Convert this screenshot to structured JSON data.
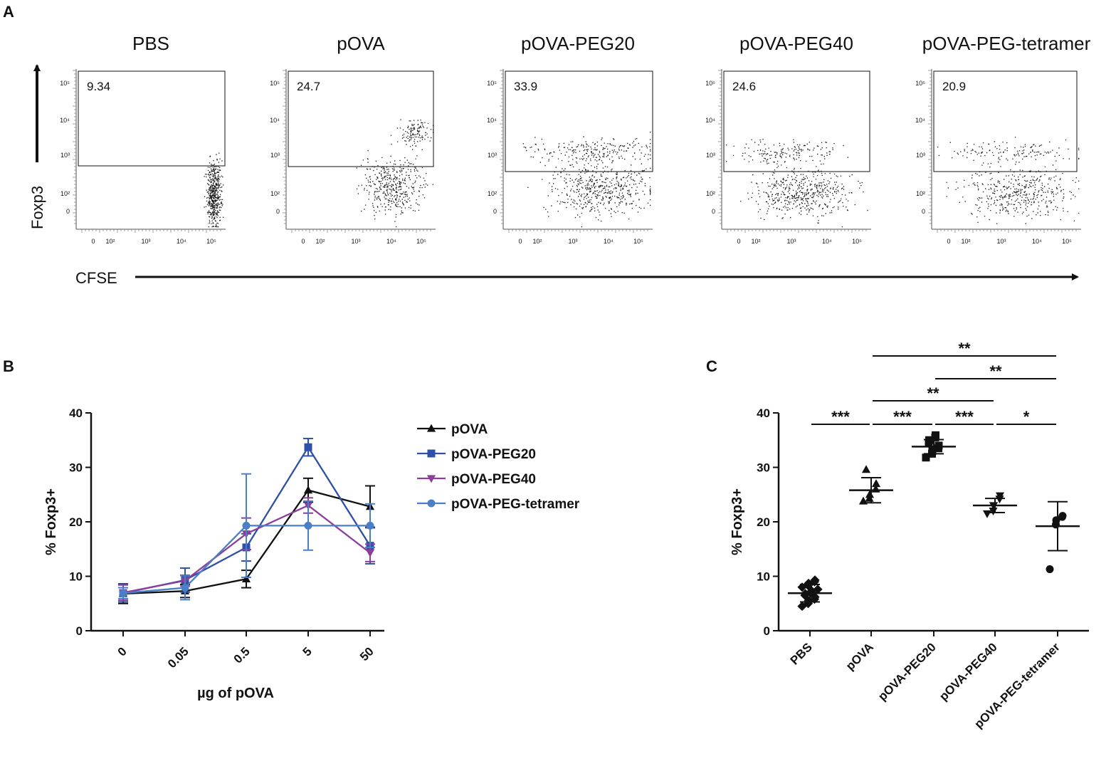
{
  "colors": {
    "black": "#111111",
    "pOVA": "#111111",
    "pOVA-PEG20": "#2e50a8",
    "pOVA-PEG40": "#8b3f9b",
    "pOVA-PEG-tetramer": "#4a7fc8"
  },
  "panel_a": {
    "letter": "A",
    "y_axis_label": "Foxp3",
    "x_axis_label": "CFSE",
    "y_tick_labels": [
      "10⁵",
      "10⁴",
      "10³",
      "10²",
      "0"
    ],
    "x_tick_labels": [
      "0",
      "10²",
      "10³",
      "10⁴",
      "10⁵"
    ],
    "plots": [
      {
        "title": "PBS",
        "gate_value": "9.34"
      },
      {
        "title": "pOVA",
        "gate_value": "24.7"
      },
      {
        "title": "pOVA-PEG20",
        "gate_value": "33.9"
      },
      {
        "title": "pOVA-PEG40",
        "gate_value": "24.6"
      },
      {
        "title": "pOVA-PEG-tetramer",
        "gate_value": "20.9"
      }
    ]
  },
  "chart_data": [
    {
      "panel": "B",
      "type": "line",
      "title": "",
      "xlabel": "µg of pOVA",
      "ylabel": "% Foxp3+",
      "categories": [
        "0",
        "0.05",
        "0.5",
        "5",
        "50"
      ],
      "ylim": [
        0,
        40
      ],
      "yticks": [
        0,
        10,
        20,
        30,
        40
      ],
      "legend_position": "right",
      "series": [
        {
          "name": "pOVA",
          "marker": "triangle-up",
          "values": [
            6.8,
            7.3,
            9.5,
            25.8,
            22.8
          ],
          "errors": [
            1.8,
            1.2,
            1.6,
            2.2,
            3.8
          ]
        },
        {
          "name": "pOVA-PEG20",
          "marker": "square",
          "values": [
            6.9,
            9.3,
            15.3,
            33.7,
            15.6
          ],
          "errors": [
            1.6,
            2.2,
            2.5,
            1.6,
            3.3
          ]
        },
        {
          "name": "pOVA-PEG40",
          "marker": "triangle-down",
          "values": [
            7.0,
            9.2,
            17.8,
            23.0,
            14.3
          ],
          "errors": [
            1.4,
            1.0,
            2.9,
            1.4,
            1.6
          ]
        },
        {
          "name": "pOVA-PEG-tetramer",
          "marker": "circle",
          "values": [
            6.9,
            7.9,
            19.3,
            19.3,
            19.3
          ],
          "errors": [
            1.0,
            2.2,
            9.5,
            4.5,
            4.0
          ]
        }
      ]
    },
    {
      "panel": "C",
      "type": "scatter",
      "title": "",
      "xlabel": "",
      "ylabel": "% Foxp3+",
      "categories": [
        "PBS",
        "pOVA",
        "pOVA-PEG20",
        "pOVA-PEG40",
        "pOVA-PEG-tetramer"
      ],
      "ylim": [
        0,
        40
      ],
      "yticks": [
        0,
        10,
        20,
        30,
        40
      ],
      "groups": [
        {
          "name": "PBS",
          "marker": "diamond",
          "mean": 6.9,
          "sd": 1.6,
          "points": [
            4.5,
            5.0,
            5.5,
            5.8,
            6.2,
            6.5,
            6.8,
            7.0,
            7.3,
            7.6,
            8.0,
            8.3,
            8.7,
            9.0,
            9.3
          ]
        },
        {
          "name": "pOVA",
          "marker": "triangle-up",
          "mean": 25.8,
          "sd": 2.3,
          "points": [
            23.8,
            24.3,
            25.0,
            26.0,
            27.0,
            29.6
          ]
        },
        {
          "name": "pOVA-PEG20",
          "marker": "square",
          "mean": 33.8,
          "sd": 1.3,
          "points": [
            31.8,
            32.5,
            33.0,
            33.5,
            34.0,
            34.5,
            35.0,
            35.5,
            35.9
          ]
        },
        {
          "name": "pOVA-PEG40",
          "marker": "triangle-down",
          "mean": 23.0,
          "sd": 1.3,
          "points": [
            21.5,
            22.0,
            23.0,
            24.2,
            24.8
          ]
        },
        {
          "name": "pOVA-PEG-tetramer",
          "marker": "circle",
          "mean": 19.2,
          "sd": 4.5,
          "points": [
            11.3,
            19.5,
            20.3,
            20.9,
            21.1
          ]
        }
      ],
      "significance": [
        {
          "from": "PBS",
          "to": "pOVA",
          "label": "***"
        },
        {
          "from": "pOVA",
          "to": "pOVA-PEG20",
          "label": "***"
        },
        {
          "from": "pOVA-PEG20",
          "to": "pOVA-PEG40",
          "label": "***"
        },
        {
          "from": "pOVA-PEG40",
          "to": "pOVA-PEG-tetramer",
          "label": "*"
        },
        {
          "from": "pOVA",
          "to": "pOVA-PEG40",
          "label": "**"
        },
        {
          "from": "pOVA-PEG20",
          "to": "pOVA-PEG-tetramer",
          "label": "**"
        },
        {
          "from": "pOVA",
          "to": "pOVA-PEG-tetramer",
          "label": "**"
        }
      ]
    }
  ]
}
